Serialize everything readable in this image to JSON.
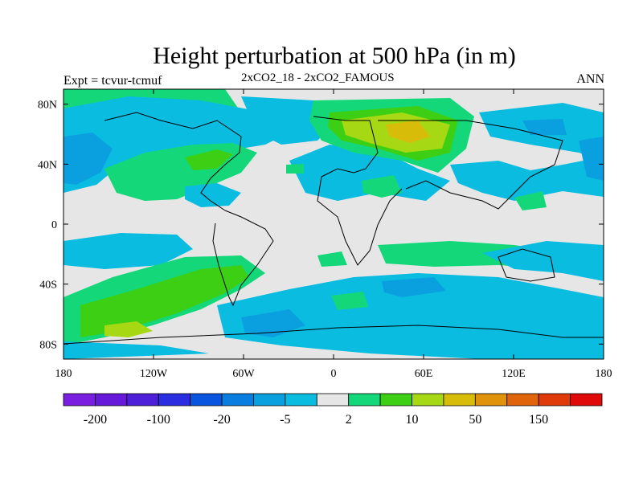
{
  "title": "Height perturbation at 500 hPa (in m)",
  "subtitle_left": "Expt = tcvur-tcmuf",
  "subtitle_center": "2xCO2_18 - 2xCO2_FAMOUS",
  "subtitle_right": "ANN",
  "map": {
    "projection": "cylindrical-equidistant",
    "lon_range": [
      -180,
      180
    ],
    "lat_range": [
      -90,
      90
    ],
    "x_ticks": [
      {
        "lon": -180,
        "label": "180"
      },
      {
        "lon": -120,
        "label": "120W"
      },
      {
        "lon": -60,
        "label": "60W"
      },
      {
        "lon": 0,
        "label": "0"
      },
      {
        "lon": 60,
        "label": "60E"
      },
      {
        "lon": 120,
        "label": "120E"
      },
      {
        "lon": 180,
        "label": "180"
      }
    ],
    "y_ticks": [
      {
        "lat": 80,
        "label": "80N"
      },
      {
        "lat": 40,
        "label": "40N"
      },
      {
        "lat": 0,
        "label": "0"
      },
      {
        "lat": -40,
        "label": "40S"
      },
      {
        "lat": -80,
        "label": "80S"
      }
    ],
    "background_color": "#e6e6e6"
  },
  "colorbar": {
    "colors": [
      "#7a1fe0",
      "#6619d8",
      "#4d1fd8",
      "#2a2ee0",
      "#0a55e0",
      "#0a7ee0",
      "#0aa0e0",
      "#0abce0",
      "#e6e6e6",
      "#14d77a",
      "#3ccf14",
      "#a6d814",
      "#d8bc0a",
      "#e0920a",
      "#e0640a",
      "#e03a0a",
      "#e00a0a"
    ],
    "labels": [
      {
        "boundary": 1,
        "text": "-200"
      },
      {
        "boundary": 3,
        "text": "-100"
      },
      {
        "boundary": 5,
        "text": "-20"
      },
      {
        "boundary": 7,
        "text": "-5"
      },
      {
        "boundary": 9,
        "text": "2"
      },
      {
        "boundary": 11,
        "text": "10"
      },
      {
        "boundary": 13,
        "text": "50"
      },
      {
        "boundary": 15,
        "text": "150"
      }
    ]
  },
  "field_colors": {
    "light_blue": "#0abce0",
    "blue": "#0aa0e0",
    "mid_blue": "#0a7ee0",
    "teal_green": "#14d77a",
    "green": "#3ccf14",
    "yellow_green": "#a6d814",
    "yellow": "#d8bc0a"
  }
}
